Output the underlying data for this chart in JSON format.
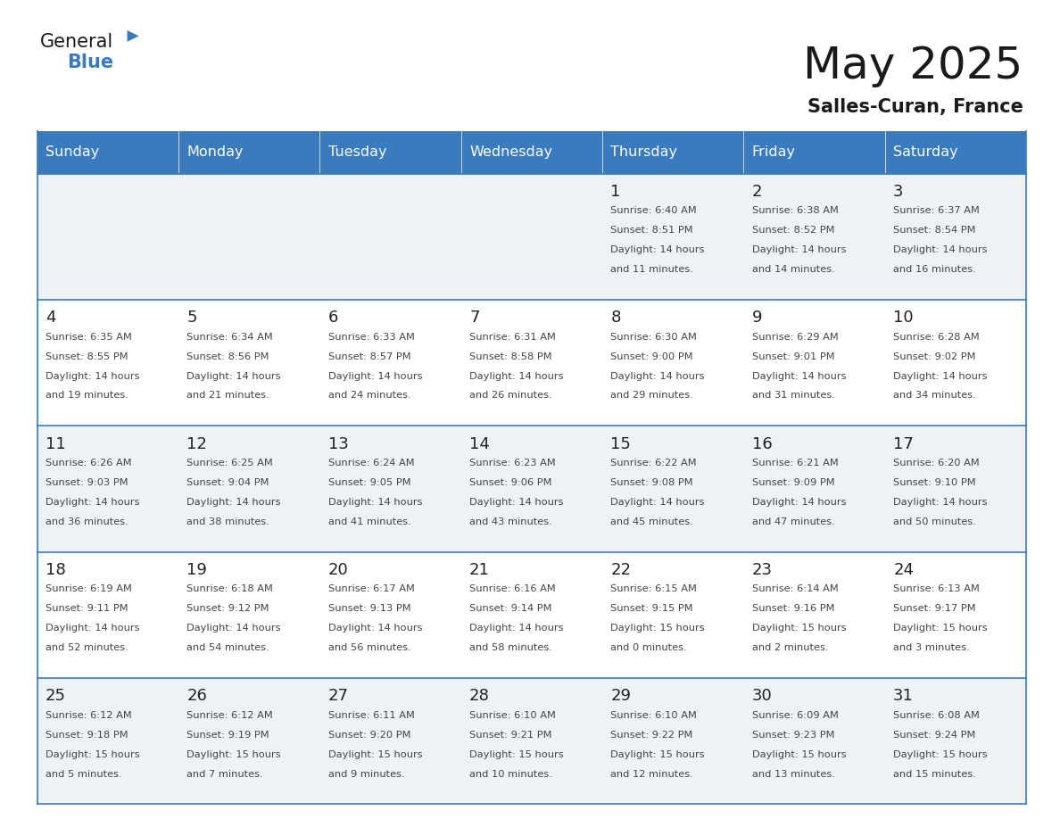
{
  "title": "May 2025",
  "subtitle": "Salles-Curan, France",
  "header_bg": "#3a7abf",
  "header_text": "#ffffff",
  "cell_bg_light": "#eef2f7",
  "cell_bg_white": "#ffffff",
  "border_color": "#3a7abf",
  "day_names": [
    "Sunday",
    "Monday",
    "Tuesday",
    "Wednesday",
    "Thursday",
    "Friday",
    "Saturday"
  ],
  "title_color": "#1a1a1a",
  "subtitle_color": "#1a1a1a",
  "day_number_color": "#222222",
  "cell_text_color": "#444444",
  "weeks": [
    [
      {
        "day": "",
        "sunrise": "",
        "sunset": "",
        "daylight": ""
      },
      {
        "day": "",
        "sunrise": "",
        "sunset": "",
        "daylight": ""
      },
      {
        "day": "",
        "sunrise": "",
        "sunset": "",
        "daylight": ""
      },
      {
        "day": "",
        "sunrise": "",
        "sunset": "",
        "daylight": ""
      },
      {
        "day": "1",
        "sunrise": "6:40 AM",
        "sunset": "8:51 PM",
        "daylight": "14 hours\nand 11 minutes."
      },
      {
        "day": "2",
        "sunrise": "6:38 AM",
        "sunset": "8:52 PM",
        "daylight": "14 hours\nand 14 minutes."
      },
      {
        "day": "3",
        "sunrise": "6:37 AM",
        "sunset": "8:54 PM",
        "daylight": "14 hours\nand 16 minutes."
      }
    ],
    [
      {
        "day": "4",
        "sunrise": "6:35 AM",
        "sunset": "8:55 PM",
        "daylight": "14 hours\nand 19 minutes."
      },
      {
        "day": "5",
        "sunrise": "6:34 AM",
        "sunset": "8:56 PM",
        "daylight": "14 hours\nand 21 minutes."
      },
      {
        "day": "6",
        "sunrise": "6:33 AM",
        "sunset": "8:57 PM",
        "daylight": "14 hours\nand 24 minutes."
      },
      {
        "day": "7",
        "sunrise": "6:31 AM",
        "sunset": "8:58 PM",
        "daylight": "14 hours\nand 26 minutes."
      },
      {
        "day": "8",
        "sunrise": "6:30 AM",
        "sunset": "9:00 PM",
        "daylight": "14 hours\nand 29 minutes."
      },
      {
        "day": "9",
        "sunrise": "6:29 AM",
        "sunset": "9:01 PM",
        "daylight": "14 hours\nand 31 minutes."
      },
      {
        "day": "10",
        "sunrise": "6:28 AM",
        "sunset": "9:02 PM",
        "daylight": "14 hours\nand 34 minutes."
      }
    ],
    [
      {
        "day": "11",
        "sunrise": "6:26 AM",
        "sunset": "9:03 PM",
        "daylight": "14 hours\nand 36 minutes."
      },
      {
        "day": "12",
        "sunrise": "6:25 AM",
        "sunset": "9:04 PM",
        "daylight": "14 hours\nand 38 minutes."
      },
      {
        "day": "13",
        "sunrise": "6:24 AM",
        "sunset": "9:05 PM",
        "daylight": "14 hours\nand 41 minutes."
      },
      {
        "day": "14",
        "sunrise": "6:23 AM",
        "sunset": "9:06 PM",
        "daylight": "14 hours\nand 43 minutes."
      },
      {
        "day": "15",
        "sunrise": "6:22 AM",
        "sunset": "9:08 PM",
        "daylight": "14 hours\nand 45 minutes."
      },
      {
        "day": "16",
        "sunrise": "6:21 AM",
        "sunset": "9:09 PM",
        "daylight": "14 hours\nand 47 minutes."
      },
      {
        "day": "17",
        "sunrise": "6:20 AM",
        "sunset": "9:10 PM",
        "daylight": "14 hours\nand 50 minutes."
      }
    ],
    [
      {
        "day": "18",
        "sunrise": "6:19 AM",
        "sunset": "9:11 PM",
        "daylight": "14 hours\nand 52 minutes."
      },
      {
        "day": "19",
        "sunrise": "6:18 AM",
        "sunset": "9:12 PM",
        "daylight": "14 hours\nand 54 minutes."
      },
      {
        "day": "20",
        "sunrise": "6:17 AM",
        "sunset": "9:13 PM",
        "daylight": "14 hours\nand 56 minutes."
      },
      {
        "day": "21",
        "sunrise": "6:16 AM",
        "sunset": "9:14 PM",
        "daylight": "14 hours\nand 58 minutes."
      },
      {
        "day": "22",
        "sunrise": "6:15 AM",
        "sunset": "9:15 PM",
        "daylight": "15 hours\nand 0 minutes."
      },
      {
        "day": "23",
        "sunrise": "6:14 AM",
        "sunset": "9:16 PM",
        "daylight": "15 hours\nand 2 minutes."
      },
      {
        "day": "24",
        "sunrise": "6:13 AM",
        "sunset": "9:17 PM",
        "daylight": "15 hours\nand 3 minutes."
      }
    ],
    [
      {
        "day": "25",
        "sunrise": "6:12 AM",
        "sunset": "9:18 PM",
        "daylight": "15 hours\nand 5 minutes."
      },
      {
        "day": "26",
        "sunrise": "6:12 AM",
        "sunset": "9:19 PM",
        "daylight": "15 hours\nand 7 minutes."
      },
      {
        "day": "27",
        "sunrise": "6:11 AM",
        "sunset": "9:20 PM",
        "daylight": "15 hours\nand 9 minutes."
      },
      {
        "day": "28",
        "sunrise": "6:10 AM",
        "sunset": "9:21 PM",
        "daylight": "15 hours\nand 10 minutes."
      },
      {
        "day": "29",
        "sunrise": "6:10 AM",
        "sunset": "9:22 PM",
        "daylight": "15 hours\nand 12 minutes."
      },
      {
        "day": "30",
        "sunrise": "6:09 AM",
        "sunset": "9:23 PM",
        "daylight": "15 hours\nand 13 minutes."
      },
      {
        "day": "31",
        "sunrise": "6:08 AM",
        "sunset": "9:24 PM",
        "daylight": "15 hours\nand 15 minutes."
      }
    ]
  ]
}
